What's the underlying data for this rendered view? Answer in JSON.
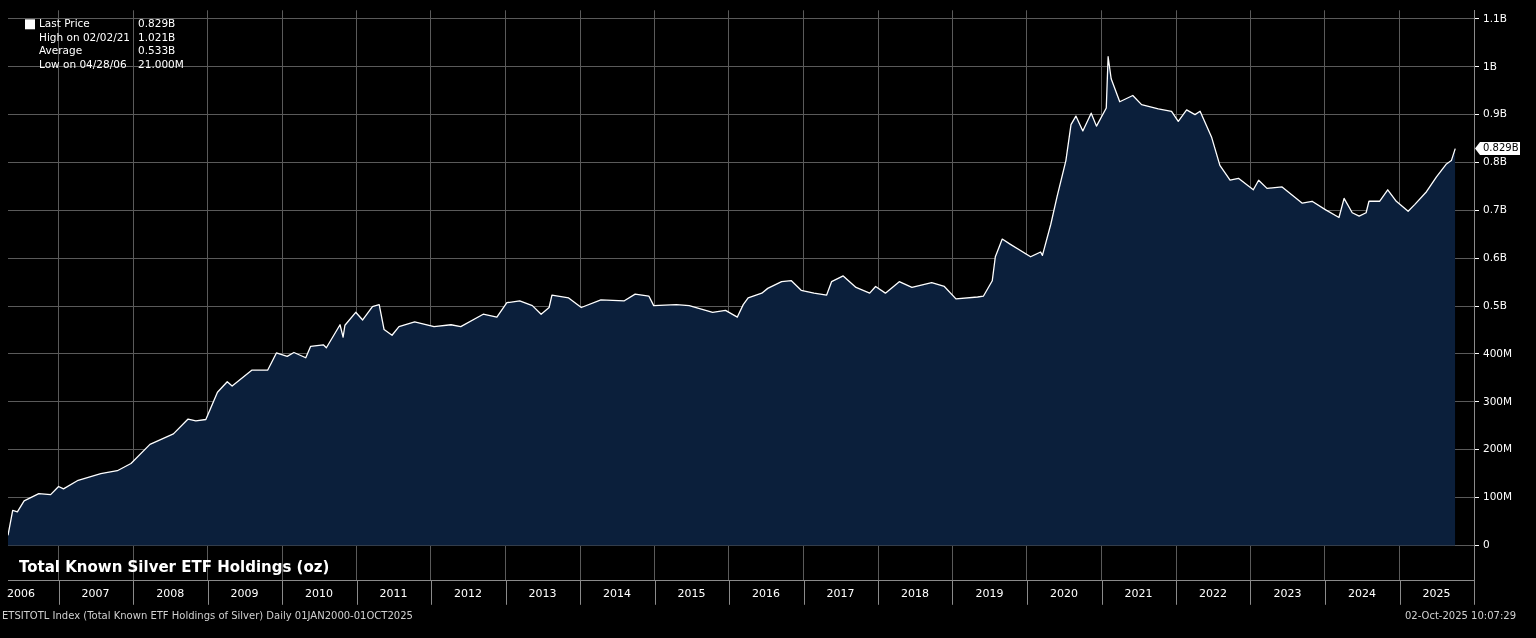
{
  "chart_data": {
    "type": "area",
    "title": "Total Known Silver ETF Holdings (oz)",
    "x": [
      "2006-04-28",
      "2006-05-21",
      "2006-06-13",
      "2006-07-16",
      "2006-09-26",
      "2006-11-23",
      "2007-01-01",
      "2007-01-25",
      "2007-04-07",
      "2007-07-27",
      "2007-10-16",
      "2007-12-22",
      "2008-03-24",
      "2008-07-17",
      "2008-09-27",
      "2008-11-04",
      "2008-12-23",
      "2009-02-18",
      "2009-04-07",
      "2009-05-01",
      "2009-08-05",
      "2009-10-22",
      "2009-12-04",
      "2010-01-26",
      "2010-02-28",
      "2010-04-27",
      "2010-05-21",
      "2010-07-22",
      "2010-08-06",
      "2010-10-12",
      "2010-10-27",
      "2010-11-05",
      "2010-12-28",
      "2011-01-31",
      "2011-03-20",
      "2011-04-22",
      "2011-05-16",
      "2011-06-24",
      "2011-07-28",
      "2011-10-13",
      "2012-01-16",
      "2012-04-08",
      "2012-05-26",
      "2012-09-13",
      "2012-11-19",
      "2013-01-07",
      "2013-03-11",
      "2013-05-12",
      "2013-06-24",
      "2013-08-02",
      "2013-08-16",
      "2013-11-06",
      "2014-01-07",
      "2014-04-13",
      "2014-08-06",
      "2014-09-28",
      "2014-12-04",
      "2014-12-28",
      "2015-04-18",
      "2015-06-20",
      "2015-10-13",
      "2015-12-15",
      "2016-02-11",
      "2016-03-11",
      "2016-04-04",
      "2016-06-10",
      "2016-07-09",
      "2016-09-15",
      "2016-11-02",
      "2016-12-20",
      "2017-02-21",
      "2017-04-24",
      "2017-05-18",
      "2017-07-14",
      "2017-09-15",
      "2017-11-21",
      "2017-12-20",
      "2018-02-06",
      "2018-04-15",
      "2018-06-16",
      "2018-09-21",
      "2018-11-22",
      "2019-01-18",
      "2019-05-04",
      "2019-06-02",
      "2019-07-15",
      "2019-07-30",
      "2019-09-02",
      "2019-10-12",
      "2020-01-19",
      "2020-03-08",
      "2020-03-17",
      "2020-04-27",
      "2020-05-28",
      "2020-07-10",
      "2020-08-04",
      "2020-08-28",
      "2020-10-01",
      "2020-11-11",
      "2020-12-07",
      "2021-01-24",
      "2021-02-02",
      "2021-02-17",
      "2021-03-31",
      "2021-06-03",
      "2021-07-16",
      "2021-10-06",
      "2021-12-10",
      "2022-01-12",
      "2022-02-22",
      "2022-04-04",
      "2022-04-29",
      "2022-06-25",
      "2022-08-04",
      "2022-09-23",
      "2022-11-03",
      "2023-01-15",
      "2023-02-10",
      "2023-03-23",
      "2023-06-05",
      "2023-09-12",
      "2023-10-30",
      "2024-01-05",
      "2024-03-10",
      "2024-04-04",
      "2024-05-14",
      "2024-06-17",
      "2024-07-21",
      "2024-08-04",
      "2024-09-25",
      "2024-11-04",
      "2024-12-16",
      "2025-02-12",
      "2025-03-16",
      "2025-05-13",
      "2025-07-01",
      "2025-08-19",
      "2025-09-12",
      "2025-10-01"
    ],
    "series": [
      {
        "name": "Last Price",
        "color": "#0b1f3b",
        "values": [
          21000000,
          73000000,
          70000000,
          93000000,
          108000000,
          106000000,
          123000000,
          118000000,
          136000000,
          150000000,
          156000000,
          171000000,
          211000000,
          233000000,
          264000000,
          260000000,
          263000000,
          320000000,
          342000000,
          333000000,
          366000000,
          366000000,
          402000000,
          395000000,
          403000000,
          392000000,
          416000000,
          419000000,
          413000000,
          461000000,
          435000000,
          460000000,
          487000000,
          471000000,
          499000000,
          503000000,
          451000000,
          439000000,
          457000000,
          467000000,
          457000000,
          461000000,
          457000000,
          483000000,
          477000000,
          507000000,
          511000000,
          501000000,
          483000000,
          497000000,
          523000000,
          517000000,
          497000000,
          513000000,
          511000000,
          525000000,
          521000000,
          501000000,
          503000000,
          501000000,
          487000000,
          491000000,
          477000000,
          503000000,
          517000000,
          527000000,
          537000000,
          551000000,
          553000000,
          533000000,
          527000000,
          523000000,
          551000000,
          563000000,
          539000000,
          527000000,
          541000000,
          527000000,
          551000000,
          539000000,
          549000000,
          541000000,
          515000000,
          519000000,
          521000000,
          553000000,
          603000000,
          640000000,
          629000000,
          603000000,
          613000000,
          606000000,
          671000000,
          729000000,
          804000000,
          879000000,
          897000000,
          866000000,
          903000000,
          876000000,
          914000000,
          1021000000,
          975000000,
          927000000,
          940000000,
          921000000,
          912000000,
          907000000,
          886000000,
          910000000,
          900000000,
          907000000,
          852000000,
          794000000,
          763000000,
          767000000,
          743000000,
          763000000,
          746000000,
          749000000,
          715000000,
          719000000,
          701000000,
          685000000,
          725000000,
          695000000,
          688000000,
          695000000,
          719000000,
          719000000,
          743000000,
          719000000,
          698000000,
          712000000,
          739000000,
          770000000,
          797000000,
          804000000,
          829000000
        ]
      }
    ],
    "xlim": [
      "2006-04-28",
      "2026-01-01"
    ],
    "xticks": [
      {
        "value": "2006-07-01",
        "label": "2006"
      },
      {
        "value": "2007-01-01",
        "label": null
      },
      {
        "value": "2007-07-01",
        "label": "2007"
      },
      {
        "value": "2008-01-01",
        "label": null
      },
      {
        "value": "2008-07-01",
        "label": "2008"
      },
      {
        "value": "2009-01-01",
        "label": null
      },
      {
        "value": "2009-07-01",
        "label": "2009"
      },
      {
        "value": "2010-01-01",
        "label": null
      },
      {
        "value": "2010-07-01",
        "label": "2010"
      },
      {
        "value": "2011-01-01",
        "label": null
      },
      {
        "value": "2011-07-01",
        "label": "2011"
      },
      {
        "value": "2012-01-01",
        "label": null
      },
      {
        "value": "2012-07-01",
        "label": "2012"
      },
      {
        "value": "2013-01-01",
        "label": null
      },
      {
        "value": "2013-07-01",
        "label": "2013"
      },
      {
        "value": "2014-01-01",
        "label": null
      },
      {
        "value": "2014-07-01",
        "label": "2014"
      },
      {
        "value": "2015-01-01",
        "label": null
      },
      {
        "value": "2015-07-01",
        "label": "2015"
      },
      {
        "value": "2016-01-01",
        "label": null
      },
      {
        "value": "2016-07-01",
        "label": "2016"
      },
      {
        "value": "2017-01-01",
        "label": null
      },
      {
        "value": "2017-07-01",
        "label": "2017"
      },
      {
        "value": "2018-01-01",
        "label": null
      },
      {
        "value": "2018-07-01",
        "label": "2018"
      },
      {
        "value": "2019-01-01",
        "label": null
      },
      {
        "value": "2019-07-01",
        "label": "2019"
      },
      {
        "value": "2020-01-01",
        "label": null
      },
      {
        "value": "2020-07-01",
        "label": "2020"
      },
      {
        "value": "2021-01-01",
        "label": null
      },
      {
        "value": "2021-07-01",
        "label": "2021"
      },
      {
        "value": "2022-01-01",
        "label": null
      },
      {
        "value": "2022-07-01",
        "label": "2022"
      },
      {
        "value": "2023-01-01",
        "label": null
      },
      {
        "value": "2023-07-01",
        "label": "2023"
      },
      {
        "value": "2024-01-01",
        "label": null
      },
      {
        "value": "2024-07-01",
        "label": "2024"
      },
      {
        "value": "2025-01-01",
        "label": null
      },
      {
        "value": "2025-07-01",
        "label": "2025"
      },
      {
        "value": "2026-01-01",
        "label": null
      }
    ],
    "ylim": [
      -74000000,
      1118000000
    ],
    "yticks": [
      0,
      {
        "value": 100000000,
        "label": "100M"
      },
      {
        "value": 200000000,
        "label": "200M"
      },
      {
        "value": 300000000,
        "label": "300M"
      },
      {
        "value": 400000000,
        "label": "400M"
      },
      {
        "value": 500000000,
        "label": "0.5B"
      },
      {
        "value": 600000000,
        "label": "0.6B"
      },
      {
        "value": 700000000,
        "label": "0.7B"
      },
      {
        "value": 800000000,
        "label": "0.8B"
      },
      {
        "value": 900000000,
        "label": "0.9B"
      },
      {
        "value": 1000000000,
        "label": "1B"
      },
      {
        "value": 1100000000,
        "label": "1.1B"
      }
    ],
    "grid": true,
    "legend": "top left",
    "annotations": [
      {
        "text": "0.829B",
        "x": "2025-10-01",
        "y": 829000000
      },
      "0.829B",
      "High on 02/02/21",
      "1.021B",
      "Average",
      "0.533B",
      "Low on 04/28/06",
      "21.000M",
      "ETSITOTL Index (Total Known ETF Holdings of Silver) Daily 01JAN2000-01OCT2025",
      "02-Oct-2025 10:07:29"
    ]
  }
}
